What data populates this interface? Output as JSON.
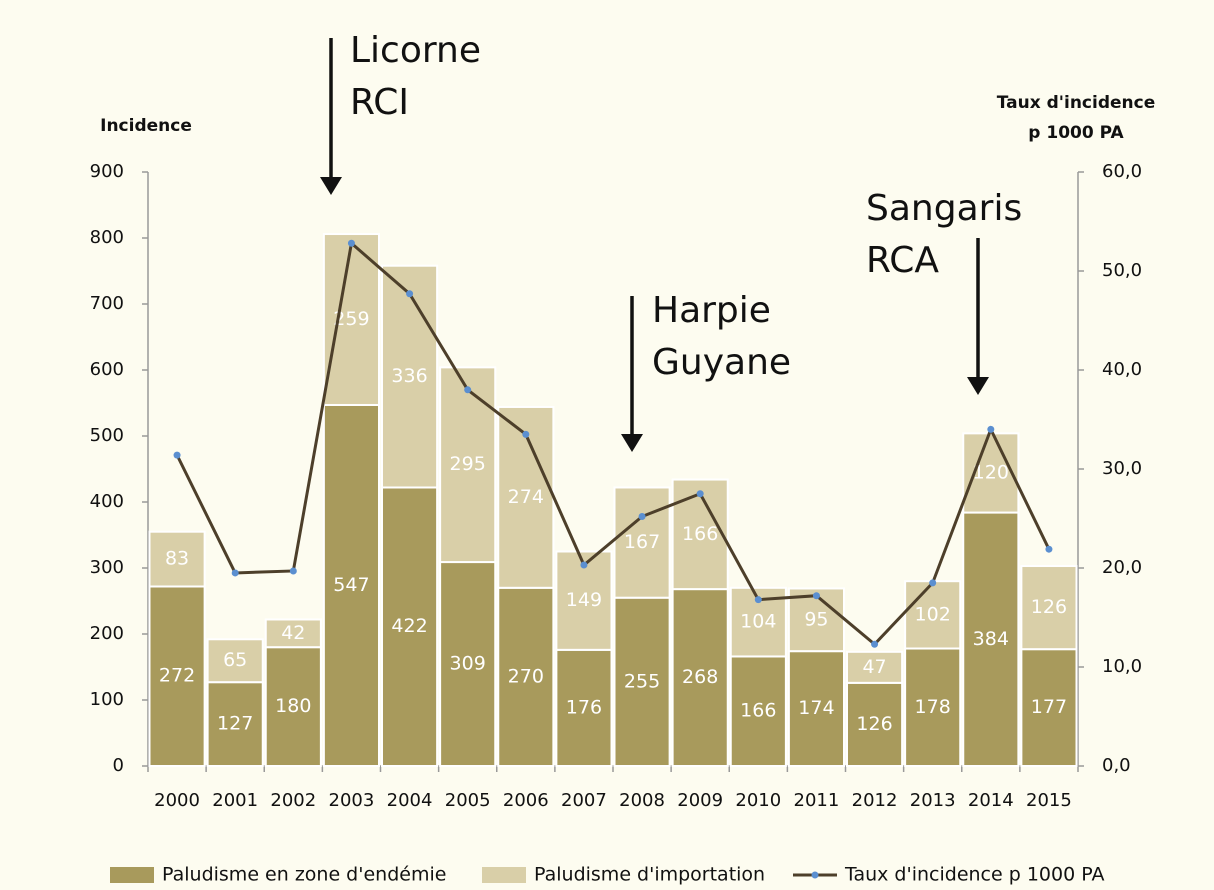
{
  "chart_data": {
    "type": "bar",
    "categories": [
      "2000",
      "2001",
      "2002",
      "2003",
      "2004",
      "2005",
      "2006",
      "2007",
      "2008",
      "2009",
      "2010",
      "2011",
      "2012",
      "2013",
      "2014",
      "2015"
    ],
    "series": [
      {
        "name": "Paludisme en zone d'endémie",
        "color": "#a89a5c",
        "stacked": true,
        "values": [
          272,
          127,
          180,
          547,
          422,
          309,
          270,
          176,
          255,
          268,
          166,
          174,
          126,
          178,
          384,
          177
        ]
      },
      {
        "name": "Paludisme d'importation",
        "color": "#d9cfa8",
        "stacked": true,
        "values": [
          83,
          65,
          42,
          259,
          336,
          295,
          274,
          149,
          167,
          166,
          104,
          95,
          47,
          102,
          120,
          126
        ]
      },
      {
        "name": "Taux d'incidence p 1000 PA",
        "color": "#4d3f2a",
        "marker_color": "#5b8fd0",
        "type": "line",
        "axis": "y2",
        "values": [
          31.4,
          19.5,
          19.7,
          52.8,
          47.7,
          38.0,
          33.5,
          20.3,
          25.2,
          27.5,
          16.8,
          17.2,
          12.3,
          18.5,
          34.0,
          21.9
        ]
      }
    ],
    "ylabel": "Incidence",
    "y2label": [
      "Taux d'incidence",
      "p 1000 PA"
    ],
    "ylim": [
      0,
      900
    ],
    "yticks": [
      0,
      100,
      200,
      300,
      400,
      500,
      600,
      700,
      800,
      900
    ],
    "y2lim": [
      0,
      60
    ],
    "y2ticks": [
      {
        "value": 0,
        "label": "0,0"
      },
      {
        "value": 10,
        "label": "10,0"
      },
      {
        "value": 20,
        "label": "20,0"
      },
      {
        "value": 30,
        "label": "30,0"
      },
      {
        "value": 40,
        "label": "40,0"
      },
      {
        "value": 50,
        "label": "50,0"
      },
      {
        "value": 60,
        "label": "60,0"
      }
    ],
    "annotations": [
      [
        "Licorne",
        "RCI"
      ],
      [
        "Harpie",
        "Guyane"
      ],
      [
        "Sangaris",
        "RCA"
      ]
    ],
    "legend": "bottom"
  }
}
